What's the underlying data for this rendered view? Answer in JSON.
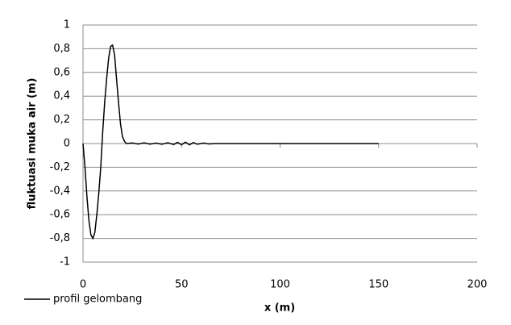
{
  "chart_data": {
    "type": "line",
    "x_label": "x (m)",
    "y_label": "fluktuasi muka air (m)",
    "x": [
      0,
      1,
      2,
      3,
      4,
      5,
      6,
      7,
      8,
      9,
      10,
      11,
      12,
      13,
      14,
      15,
      16,
      17,
      18,
      19,
      20,
      21,
      22,
      25,
      28,
      31,
      34,
      37,
      40,
      43,
      46,
      48,
      50,
      52,
      54,
      56,
      58,
      61,
      64,
      67,
      100,
      150
    ],
    "series": [
      {
        "name": "profil gelombang",
        "color": "#000000",
        "values": [
          0,
          -0.2,
          -0.45,
          -0.65,
          -0.77,
          -0.8,
          -0.75,
          -0.6,
          -0.42,
          -0.2,
          0.1,
          0.35,
          0.55,
          0.72,
          0.82,
          0.83,
          0.75,
          0.55,
          0.35,
          0.17,
          0.06,
          0.02,
          0,
          0.005,
          -0.004,
          0.006,
          -0.005,
          0.004,
          -0.006,
          0.007,
          -0.008,
          0.01,
          -0.01,
          0.012,
          -0.011,
          0.009,
          -0.006,
          0.004,
          -0.003,
          0,
          0,
          0
        ]
      }
    ],
    "xlim": [
      0,
      200
    ],
    "xticks": [
      0,
      50,
      100,
      150,
      200
    ],
    "ylim": [
      -1,
      1
    ],
    "yticks": [
      -1,
      {
        "value": -0.8,
        "label": "-0,8"
      },
      {
        "value": -0.6,
        "label": "-0,6"
      },
      {
        "value": -0.4,
        "label": "-0,4"
      },
      {
        "value": -0.2,
        "label": "-0,2"
      },
      0,
      {
        "value": 0.2,
        "label": "0,2"
      },
      {
        "value": 0.4,
        "label": "0,4"
      },
      {
        "value": 0.6,
        "label": "0,6"
      },
      {
        "value": 0.8,
        "label": "0,8"
      },
      1
    ],
    "grid": true
  }
}
